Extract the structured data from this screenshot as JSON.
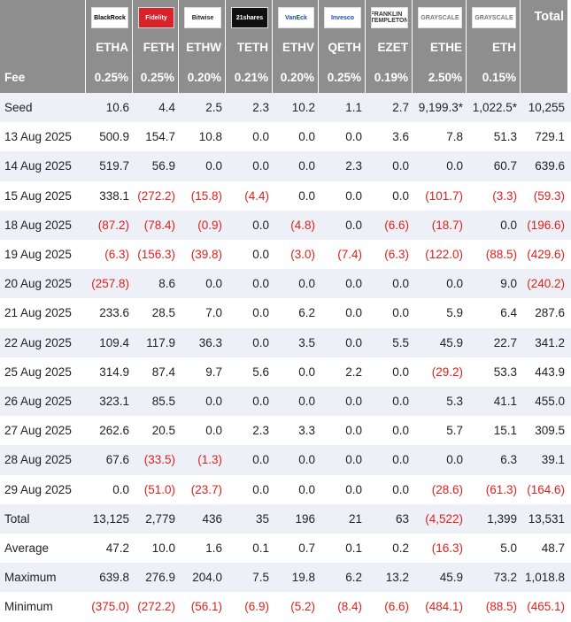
{
  "header": {
    "logos": [
      "BlackRock",
      "Fidelity",
      "Bitwise",
      "21shares",
      "VanEck",
      "Invesco",
      "FRANKLIN TEMPLETON",
      "GRAYSCALE",
      "GRAYSCALE"
    ],
    "total": "Total",
    "tickers": [
      "ETHA",
      "FETH",
      "ETHW",
      "TETH",
      "ETHV",
      "QETH",
      "EZET",
      "ETHE",
      "ETH"
    ]
  },
  "fee": {
    "label": "Fee",
    "values": [
      "0.25%",
      "0.25%",
      "0.20%",
      "0.21%",
      "0.20%",
      "0.25%",
      "0.19%",
      "2.50%",
      "0.15%"
    ]
  },
  "table": {
    "rows": [
      {
        "label": "Seed",
        "cells": [
          "10.6",
          "4.4",
          "2.5",
          "2.3",
          "10.2",
          "1.1",
          "2.7",
          "9,199.3*",
          "1,022.5*",
          "10,255"
        ]
      },
      {
        "label": "13 Aug 2025",
        "cells": [
          "500.9",
          "154.7",
          "10.8",
          "0.0",
          "0.0",
          "0.0",
          "3.6",
          "7.8",
          "51.3",
          "729.1"
        ]
      },
      {
        "label": "14 Aug 2025",
        "cells": [
          "519.7",
          "56.9",
          "0.0",
          "0.0",
          "0.0",
          "2.3",
          "0.0",
          "0.0",
          "60.7",
          "639.6"
        ]
      },
      {
        "label": "15 Aug 2025",
        "cells": [
          "338.1",
          "(272.2)",
          "(15.8)",
          "(4.4)",
          "0.0",
          "0.0",
          "0.0",
          "(101.7)",
          "(3.3)",
          "(59.3)"
        ]
      },
      {
        "label": "18 Aug 2025",
        "cells": [
          "(87.2)",
          "(78.4)",
          "(0.9)",
          "0.0",
          "(4.8)",
          "0.0",
          "(6.6)",
          "(18.7)",
          "0.0",
          "(196.6)"
        ]
      },
      {
        "label": "19 Aug 2025",
        "cells": [
          "(6.3)",
          "(156.3)",
          "(39.8)",
          "0.0",
          "(3.0)",
          "(7.4)",
          "(6.3)",
          "(122.0)",
          "(88.5)",
          "(429.6)"
        ]
      },
      {
        "label": "20 Aug 2025",
        "cells": [
          "(257.8)",
          "8.6",
          "0.0",
          "0.0",
          "0.0",
          "0.0",
          "0.0",
          "0.0",
          "9.0",
          "(240.2)"
        ]
      },
      {
        "label": "21 Aug 2025",
        "cells": [
          "233.6",
          "28.5",
          "7.0",
          "0.0",
          "6.2",
          "0.0",
          "0.0",
          "5.9",
          "6.4",
          "287.6"
        ]
      },
      {
        "label": "22 Aug 2025",
        "cells": [
          "109.4",
          "117.9",
          "36.3",
          "0.0",
          "3.5",
          "0.0",
          "5.5",
          "45.9",
          "22.7",
          "341.2"
        ]
      },
      {
        "label": "25 Aug 2025",
        "cells": [
          "314.9",
          "87.4",
          "9.7",
          "5.6",
          "0.0",
          "2.2",
          "0.0",
          "(29.2)",
          "53.3",
          "443.9"
        ]
      },
      {
        "label": "26 Aug 2025",
        "cells": [
          "323.1",
          "85.5",
          "0.0",
          "0.0",
          "0.0",
          "0.0",
          "0.0",
          "5.3",
          "41.1",
          "455.0"
        ]
      },
      {
        "label": "27 Aug 2025",
        "cells": [
          "262.6",
          "20.5",
          "0.0",
          "2.3",
          "3.3",
          "0.0",
          "0.0",
          "5.7",
          "15.1",
          "309.5"
        ]
      },
      {
        "label": "28 Aug 2025",
        "cells": [
          "67.6",
          "(33.5)",
          "(1.3)",
          "0.0",
          "0.0",
          "0.0",
          "0.0",
          "0.0",
          "6.3",
          "39.1"
        ]
      },
      {
        "label": "29 Aug 2025",
        "cells": [
          "0.0",
          "(51.0)",
          "(23.7)",
          "0.0",
          "0.0",
          "0.0",
          "0.0",
          "(28.6)",
          "(61.3)",
          "(164.6)"
        ]
      },
      {
        "label": "Total",
        "cells": [
          "13,125",
          "2,779",
          "436",
          "35",
          "196",
          "21",
          "63",
          "(4,522)",
          "1,399",
          "13,531"
        ]
      },
      {
        "label": "Average",
        "cells": [
          "47.2",
          "10.0",
          "1.6",
          "0.1",
          "0.7",
          "0.1",
          "0.2",
          "(16.3)",
          "5.0",
          "48.7"
        ]
      },
      {
        "label": "Maximum",
        "cells": [
          "639.8",
          "276.9",
          "204.0",
          "7.5",
          "19.8",
          "6.2",
          "13.2",
          "45.9",
          "73.2",
          "1,018.8"
        ]
      },
      {
        "label": "Minimum",
        "cells": [
          "(375.0)",
          "(272.2)",
          "(56.1)",
          "(6.9)",
          "(5.2)",
          "(8.4)",
          "(6.6)",
          "(484.1)",
          "(88.5)",
          "(465.1)"
        ]
      }
    ]
  }
}
